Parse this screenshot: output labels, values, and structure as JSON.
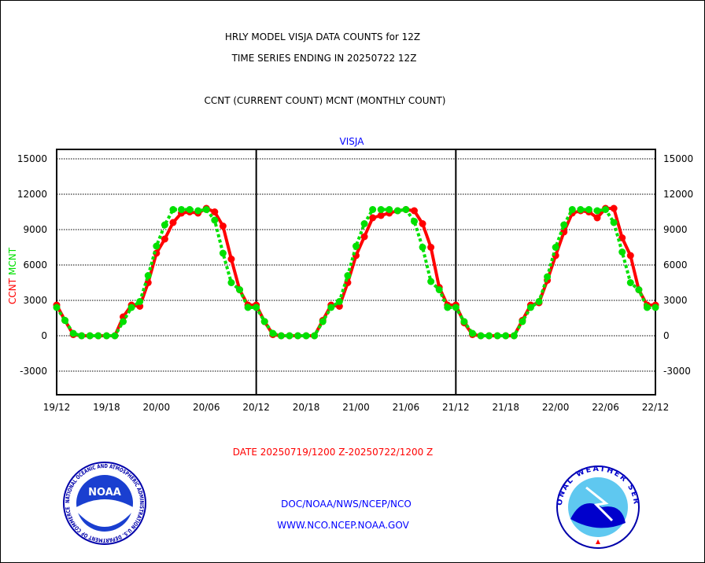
{
  "header": {
    "title_line1": "HRLY MODEL VISJA DATA COUNTS for 12Z",
    "title_line2": "TIME SERIES ENDING IN 20250722 12Z",
    "subtitle": "CCNT (CURRENT COUNT) MCNT (MONTHLY COUNT)"
  },
  "footer": {
    "date_range": "DATE 20250719/1200 Z-20250722/1200 Z",
    "org_line": "DOC/NOAA/NWS/NCEP/NCO",
    "url_line": "WWW.NCO.NCEP.NOAA.GOV",
    "noaa_logo_text": "NOAA",
    "noaa_ring_text": "NATIONAL OCEANIC AND ATMOSPHERIC ADMINISTRATION U.S. DEPARTMENT OF COMMERCE",
    "nws_ring_text": "NATIONAL WEATHER SERVICE"
  },
  "colors": {
    "ccnt": "#ff0000",
    "mcnt": "#00e000",
    "title": "#000000",
    "blue": "#0000ff"
  },
  "chart_data": {
    "type": "line",
    "title": "VISJA",
    "ylabel_parts": [
      "CCNT",
      "MCNT"
    ],
    "ylim": [
      -5000,
      16500
    ],
    "yticks": [
      -3000,
      0,
      3000,
      6000,
      9000,
      12000,
      15000
    ],
    "ytick_labels": [
      "-3000",
      "0",
      "3000",
      "6000",
      "9000",
      "12000",
      "15000"
    ],
    "xlim": [
      0,
      72
    ],
    "xticks": [
      0,
      6,
      12,
      18,
      24,
      30,
      36,
      42,
      48,
      54,
      60,
      66,
      72
    ],
    "xtick_labels": [
      "19/12",
      "19/18",
      "20/00",
      "20/06",
      "20/12",
      "20/18",
      "21/00",
      "21/06",
      "21/12",
      "21/18",
      "22/00",
      "22/06",
      "22/12"
    ],
    "day_dividers": [
      24,
      48
    ],
    "grid": true,
    "x_unit": "hours since 20250719 12Z",
    "series": [
      {
        "name": "CCNT",
        "style": "solid",
        "values": [
          2600,
          1300,
          100,
          0,
          0,
          0,
          0,
          0,
          1600,
          2600,
          2500,
          4500,
          7000,
          8200,
          9600,
          10400,
          10500,
          10400,
          10800,
          10500,
          9300,
          6500,
          3900,
          2600,
          2600,
          1200,
          100,
          0,
          0,
          0,
          0,
          0,
          1300,
          2600,
          2500,
          4500,
          6800,
          8400,
          10000,
          10200,
          10400,
          10600,
          10700,
          10600,
          9500,
          7500,
          4100,
          2600,
          2600,
          1100,
          100,
          0,
          0,
          0,
          0,
          0,
          1300,
          2600,
          2800,
          4700,
          6800,
          8800,
          10400,
          10600,
          10500,
          10000,
          10800,
          10800,
          8300,
          6800,
          3900,
          2600,
          2600
        ]
      },
      {
        "name": "MCNT",
        "style": "dashed",
        "values": [
          2400,
          1300,
          200,
          0,
          0,
          0,
          0,
          0,
          1200,
          2400,
          2900,
          5100,
          7600,
          9400,
          10700,
          10700,
          10700,
          10600,
          10700,
          9800,
          7000,
          4500,
          3900,
          2400,
          2400,
          1200,
          200,
          0,
          0,
          0,
          0,
          0,
          1200,
          2400,
          2900,
          5100,
          7600,
          9500,
          10700,
          10700,
          10700,
          10600,
          10700,
          9700,
          7500,
          4600,
          3900,
          2400,
          2400,
          1200,
          200,
          0,
          0,
          0,
          0,
          0,
          1200,
          2400,
          2900,
          5000,
          7500,
          9400,
          10700,
          10700,
          10700,
          10600,
          10700,
          9600,
          7100,
          4500,
          3900,
          2400,
          2400
        ]
      }
    ]
  }
}
